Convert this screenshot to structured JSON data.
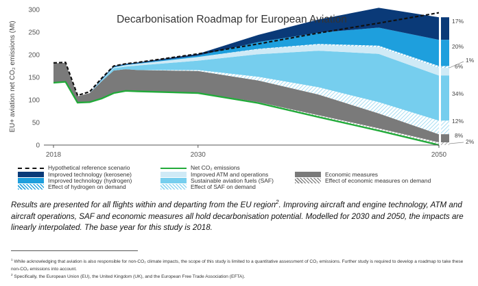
{
  "chart_data": {
    "type": "area",
    "title": "Decarbonisation Roadmap for European Aviation",
    "ylabel": "EU+ aviation net CO₂ emissions (Mt)",
    "xlabel": "",
    "x_ticks": [
      "2018",
      "2030",
      "2050"
    ],
    "y_ticks": [
      0,
      50,
      100,
      150,
      200,
      250,
      300
    ],
    "ylim": [
      0,
      300
    ],
    "grid": false,
    "legend_position": "bottom",
    "x": [
      2018,
      2019,
      2020,
      2021,
      2022,
      2023,
      2024,
      2025,
      2030,
      2035,
      2040,
      2045,
      2050
    ],
    "reference_scenario": {
      "name": "Hypothetical reference scenario",
      "values": [
        182,
        183,
        110,
        118,
        148,
        175,
        180,
        183,
        202,
        224,
        248,
        270,
        293
      ]
    },
    "series": [
      {
        "name": "Net CO₂ emissions",
        "values": [
          138,
          140,
          94,
          95,
          103,
          115,
          120,
          119,
          115,
          93,
          62,
          32,
          0
        ]
      },
      {
        "name": "Effect of economic measures on demand",
        "values": [
          0,
          0,
          0,
          0,
          0,
          0,
          0,
          0,
          1,
          2,
          4,
          5,
          6
        ]
      },
      {
        "name": "Economic measures",
        "values": [
          43,
          42,
          14,
          20,
          38,
          50,
          48,
          47,
          48,
          48,
          46,
          33,
          18
        ]
      },
      {
        "name": "Effect of SAF on demand",
        "values": [
          0,
          0,
          0,
          0,
          0,
          0,
          0,
          0,
          2,
          8,
          16,
          25,
          30
        ]
      },
      {
        "name": "Sustainable aviation fuels (SAF)",
        "values": [
          0,
          0,
          0,
          0,
          2,
          5,
          6,
          10,
          21,
          50,
          81,
          107,
          100
        ]
      },
      {
        "name": "Improved ATM and operations",
        "values": [
          0,
          0,
          0,
          0,
          1,
          2,
          3,
          4,
          8,
          11,
          13,
          15,
          17
        ]
      },
      {
        "name": "Effect of hydrogen on demand",
        "values": [
          0,
          0,
          0,
          0,
          0,
          0,
          0,
          0,
          0,
          1,
          2,
          3,
          4
        ]
      },
      {
        "name": "Improved technology (hydrogen)",
        "values": [
          0,
          0,
          0,
          0,
          1,
          1,
          1,
          1,
          3,
          15,
          25,
          40,
          58
        ]
      },
      {
        "name": "Improved technology (kerosene)",
        "values": [
          0,
          0,
          0,
          0,
          2,
          2,
          2,
          2,
          4,
          16,
          29,
          44,
          50
        ]
      }
    ],
    "shares_2050": [
      "17%",
      "20%",
      "1%",
      "6%",
      "34%",
      "12%",
      "8%",
      "2%"
    ],
    "share_colors": [
      "#0a3a78",
      "#1e9fdd",
      "#bfe6f6",
      "#d6eef8",
      "#6ccbee",
      "#bcdff0",
      "#6d6d6d",
      "#c8c8c8"
    ],
    "colors": {
      "kerosene": "#0a3a78",
      "hydrogen": "#1e9fdd",
      "atm": "#cfeaf6",
      "saf": "#76ceee",
      "economic": "#7a7a7a",
      "net": "#22aa3a",
      "reference": "#111111"
    }
  },
  "legend": [
    {
      "label": "Hypothetical reference scenario",
      "swatch": "reference"
    },
    {
      "label": "Improved technology (kerosene)",
      "swatch": "kerosene"
    },
    {
      "label": "Improved technology (hydrogen)",
      "swatch": "hydrogen"
    },
    {
      "label": "Effect of hydrogen on demand",
      "swatch": "hydrogen-hatch"
    },
    {
      "label": "Net CO₂ emissions",
      "swatch": "net"
    },
    {
      "label": "Improved ATM and operations",
      "swatch": "atm"
    },
    {
      "label": "Sustainable aviation fuels (SAF)",
      "swatch": "saf"
    },
    {
      "label": "Effect of SAF on demand",
      "swatch": "saf-hatch"
    },
    {
      "label": "Economic measures",
      "swatch": "economic"
    },
    {
      "label": "Effect of economic measures on demand",
      "swatch": "economic-hatch"
    }
  ],
  "caption": {
    "part1": "Results are presented for all flights within and departing from the EU region",
    "sup": "2",
    "part2": ". Improving aircraft and engine technology, ATM and aircraft operations, SAF and economic measures all hold decarbonisation potential. Modelled for 2030 and 2050, the impacts are linearly interpolated. The base year for this study is 2018."
  },
  "footnotes": [
    {
      "mark": "1",
      "text": "While acknowledging that aviation is also responsible for non-CO₂ climate impacts, the scope of this study is limited to a quantitative assessment of CO₂ emissions. Further study is required to develop a roadmap to take these non-CO₂ emissions into account."
    },
    {
      "mark": "2",
      "text": "Specifically, the European Union (EU), the United Kingdom (UK), and the European Free Trade Association (EFTA)."
    }
  ]
}
